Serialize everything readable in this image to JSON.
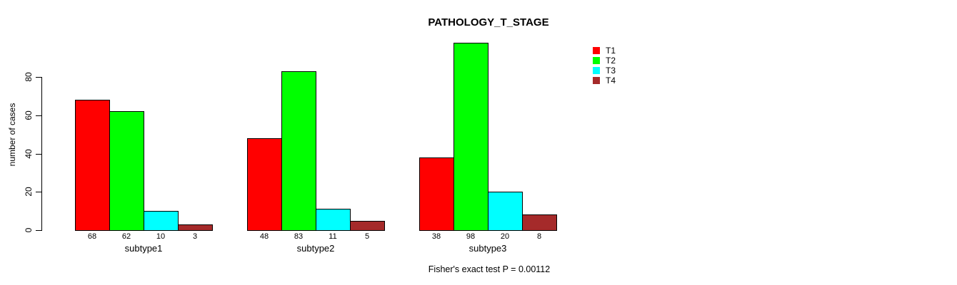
{
  "chart_data": {
    "type": "bar",
    "title": "PATHOLOGY_T_STAGE",
    "categories": [
      "subtype1",
      "subtype2",
      "subtype3"
    ],
    "series": [
      {
        "name": "T1",
        "color": "#ff0000",
        "values": [
          68,
          48,
          38
        ]
      },
      {
        "name": "T2",
        "color": "#00ff00",
        "values": [
          62,
          83,
          98
        ]
      },
      {
        "name": "T3",
        "color": "#00ffff",
        "values": [
          10,
          11,
          20
        ]
      },
      {
        "name": "T4",
        "color": "#a52a2a",
        "values": [
          3,
          5,
          8
        ]
      }
    ],
    "ylabel": "number of cases",
    "xlabel": "",
    "ylim": [
      0,
      100
    ],
    "yticks": [
      0,
      20,
      40,
      60,
      80
    ],
    "grid": false,
    "legend_position": "top-right",
    "bar_value_labels": true,
    "annotation": "Fisher's exact test P = 0.00112",
    "background_color": "#ffffff",
    "axis_color": "#000000",
    "bar_border_color": "#000000"
  }
}
